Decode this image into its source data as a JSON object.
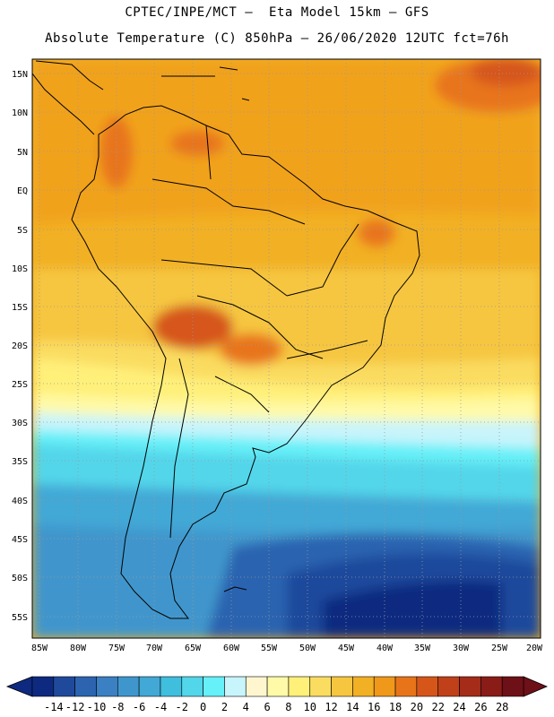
{
  "header": {
    "line1": "CPTEC/INPE/MCT –  Eta Model 15km – GFS",
    "line2": "Absolute Temperature (C) 850hPa – 26/06/2020 12UTC fct=76h"
  },
  "map": {
    "lat_labels": [
      "15N",
      "10N",
      "5N",
      "EQ",
      "5S",
      "10S",
      "15S",
      "20S",
      "25S",
      "30S",
      "35S",
      "40S",
      "45S",
      "50S",
      "55S"
    ],
    "lon_labels": [
      "85W",
      "80W",
      "75W",
      "70W",
      "65W",
      "60W",
      "55W",
      "50W",
      "45W",
      "40W",
      "35W",
      "30W",
      "25W",
      "20W"
    ],
    "lat_range": [
      16.5,
      -58
    ],
    "lon_range": [
      -85,
      -20
    ]
  },
  "colorbar": {
    "labels": [
      "-14",
      "-12",
      "-10",
      "-8",
      "-6",
      "-4",
      "-2",
      "0",
      "2",
      "4",
      "6",
      "8",
      "10",
      "12",
      "14",
      "16",
      "18",
      "20",
      "22",
      "24",
      "26",
      "28"
    ],
    "colors": [
      "#0e2a80",
      "#1f4a9c",
      "#2c64b0",
      "#3a80c2",
      "#3f96cc",
      "#42a8d6",
      "#3fbede",
      "#52d6ea",
      "#66f0f8",
      "#c8f4fb",
      "#fff6d0",
      "#fffaa8",
      "#fff07a",
      "#fadc60",
      "#f6c640",
      "#f2b024",
      "#f0981a",
      "#e8741a",
      "#d6561a",
      "#c0401a",
      "#a42c18",
      "#8a1c18",
      "#6e1018"
    ],
    "left_arrow_color": "#0e2a80",
    "right_arrow_color": "#6e1018"
  }
}
